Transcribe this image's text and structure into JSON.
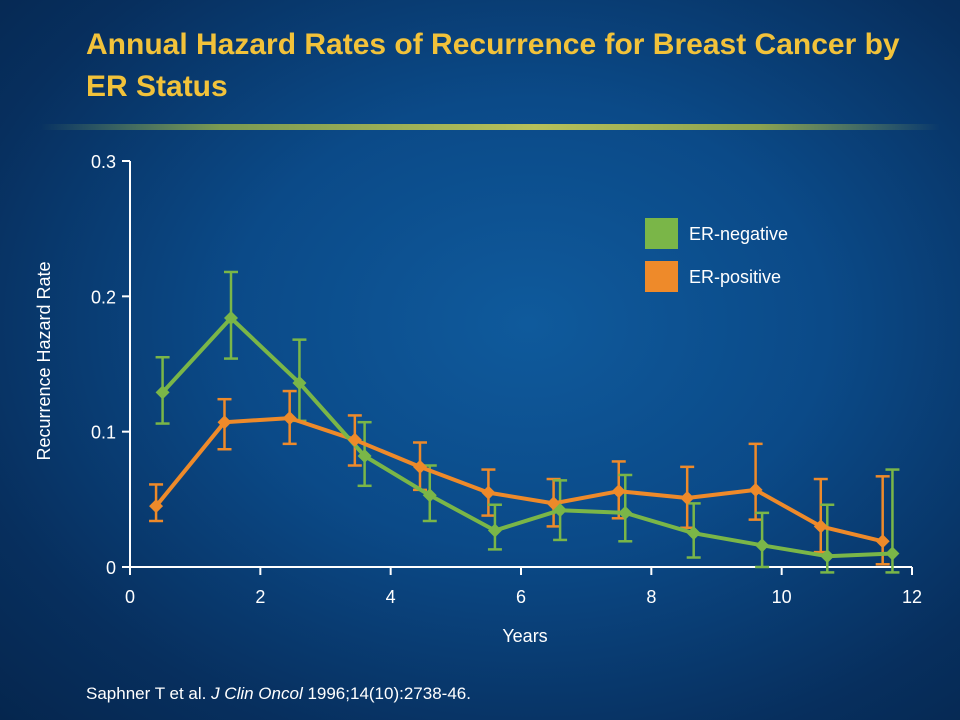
{
  "slide": {
    "title": "Annual Hazard Rates of Recurrence for Breast Cancer by ER Status",
    "citation": {
      "authors": "Saphner T et al. ",
      "journal": "J Clin Oncol",
      "details": " 1996;14(10):2738-46."
    }
  },
  "colors": {
    "background": "#0b4a88",
    "title": "#f2c23a",
    "er_negative": "#7ab648",
    "er_positive": "#ee8a2a",
    "axis": "#ffffff"
  },
  "chart_data": {
    "type": "line",
    "title": "Annual Hazard Rates of Recurrence for Breast Cancer by ER Status",
    "xlabel": "Years",
    "ylabel": "Recurrence Hazard Rate",
    "xlim": [
      0,
      12
    ],
    "ylim": [
      0,
      0.3
    ],
    "xticks": [
      0,
      2,
      4,
      6,
      8,
      10,
      12
    ],
    "xtick_labels": [
      "0",
      "2",
      "4",
      "6",
      "8",
      "10",
      "12"
    ],
    "yticks": [
      0,
      0.1,
      0.2,
      0.3
    ],
    "ytick_labels": [
      "0",
      "0.1",
      "0.2",
      "0.3"
    ],
    "grid": false,
    "legend_position": "top-right",
    "error_bars": true,
    "series": [
      {
        "name": "ER-negative",
        "color": "#7ab648",
        "marker": "diamond",
        "x": [
          0.5,
          1.55,
          2.6,
          3.6,
          4.6,
          5.6,
          6.6,
          7.6,
          8.65,
          9.7,
          10.7,
          11.7
        ],
        "y": [
          0.129,
          0.184,
          0.136,
          0.082,
          0.053,
          0.027,
          0.042,
          0.04,
          0.025,
          0.016,
          0.008,
          0.01
        ],
        "y_low": [
          0.106,
          0.154,
          0.108,
          0.06,
          0.034,
          0.013,
          0.02,
          0.019,
          0.007,
          0.0,
          -0.004,
          -0.004
        ],
        "y_high": [
          0.155,
          0.218,
          0.168,
          0.107,
          0.075,
          0.046,
          0.064,
          0.068,
          0.047,
          0.04,
          0.046,
          0.072
        ]
      },
      {
        "name": "ER-positive",
        "color": "#ee8a2a",
        "marker": "diamond",
        "x": [
          0.4,
          1.45,
          2.45,
          3.45,
          4.45,
          5.5,
          6.5,
          7.5,
          8.55,
          9.6,
          10.6,
          11.55
        ],
        "y": [
          0.045,
          0.107,
          0.11,
          0.094,
          0.074,
          0.055,
          0.047,
          0.056,
          0.051,
          0.057,
          0.03,
          0.019
        ],
        "y_low": [
          0.034,
          0.087,
          0.091,
          0.075,
          0.057,
          0.038,
          0.03,
          0.036,
          0.029,
          0.035,
          0.011,
          0.002
        ],
        "y_high": [
          0.061,
          0.124,
          0.13,
          0.112,
          0.092,
          0.072,
          0.065,
          0.078,
          0.074,
          0.091,
          0.065,
          0.067
        ]
      }
    ]
  }
}
